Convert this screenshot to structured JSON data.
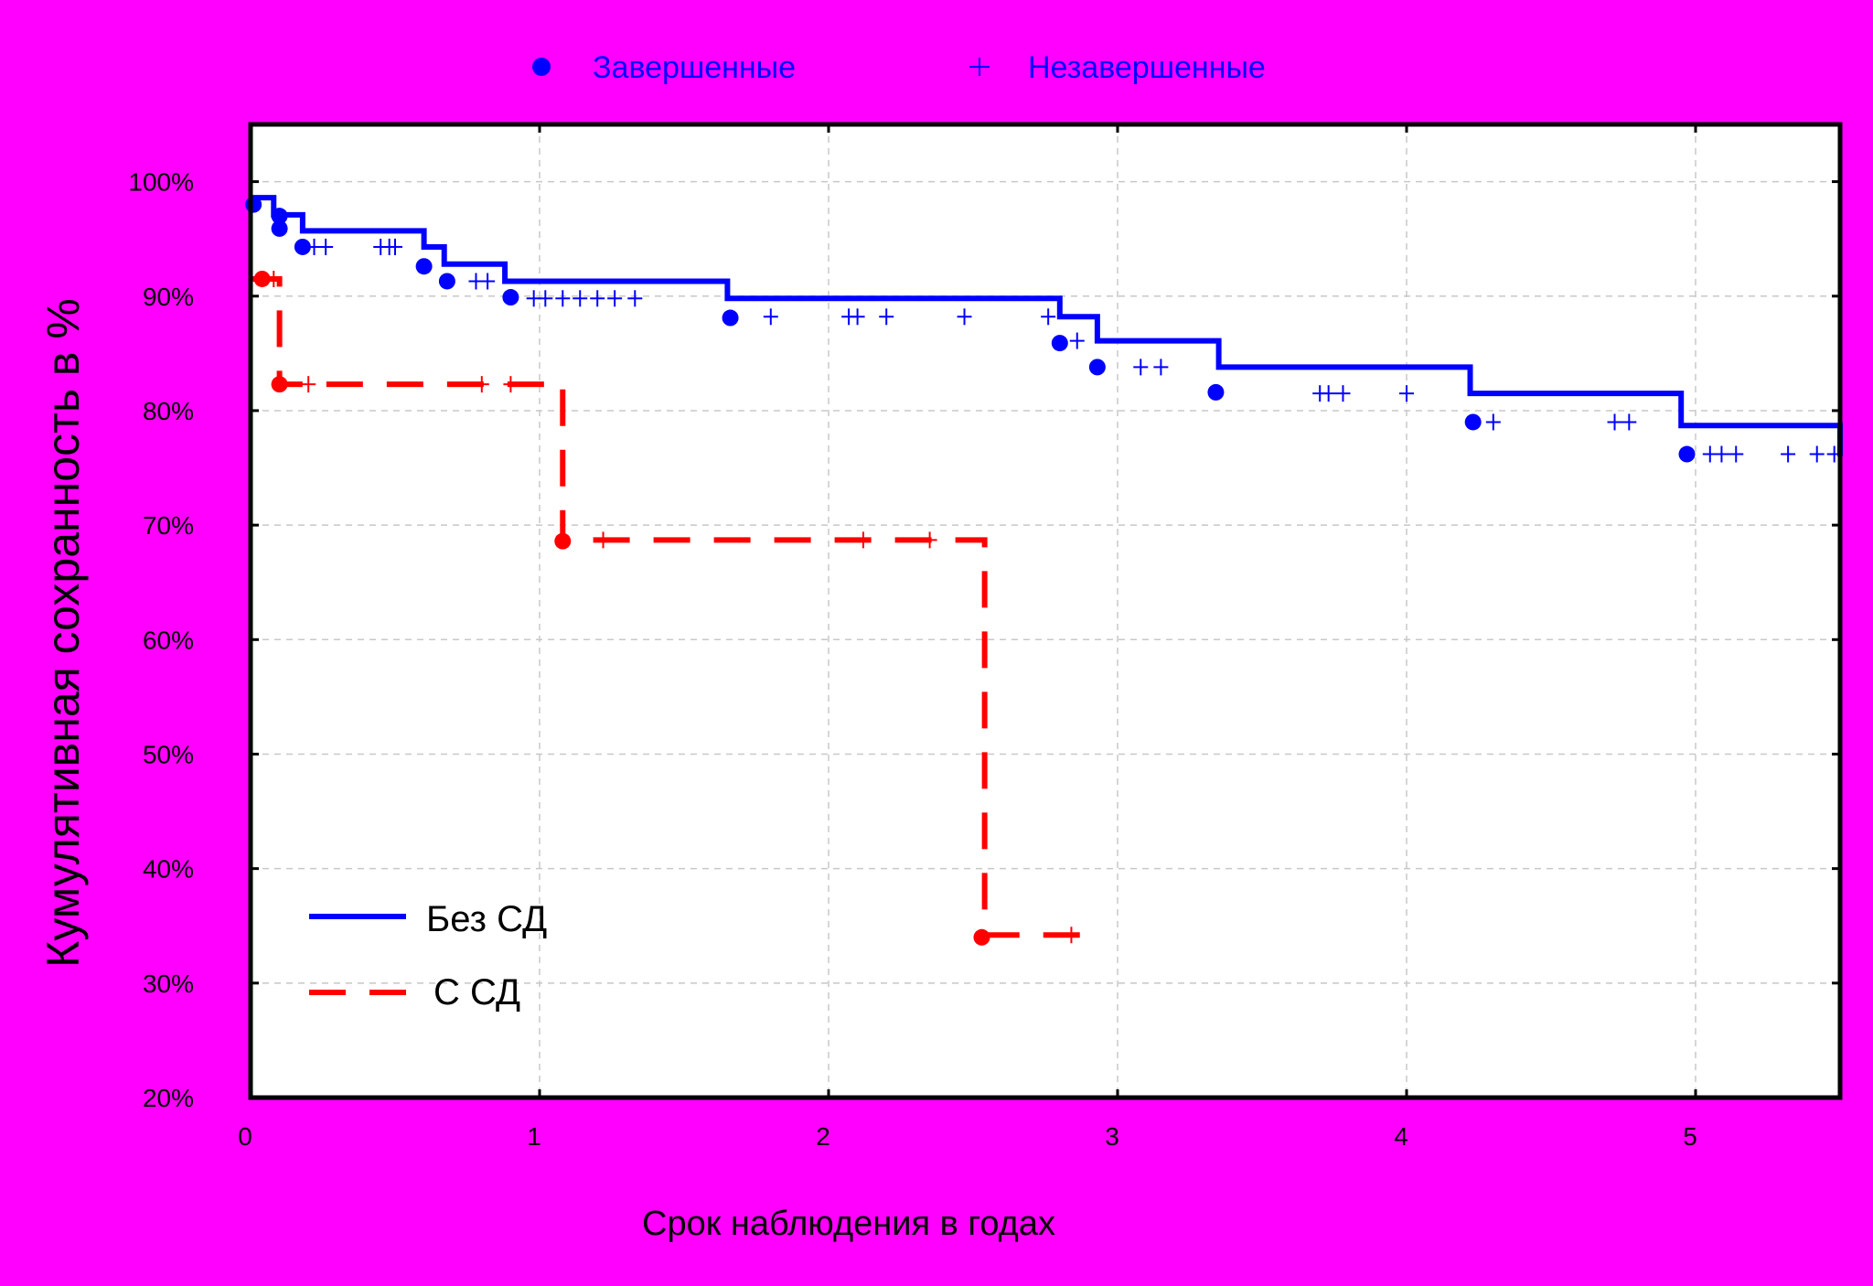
{
  "colors": {
    "background": "#FF00FF",
    "series_without_dm": "#0000FF",
    "series_with_dm": "#FF0000",
    "grid": "#C8C8C8",
    "axis": "#000000",
    "plot_bg": "#FFFFFF"
  },
  "chart_data": {
    "type": "line",
    "subtype": "kaplan-meier-step",
    "title": "",
    "xlabel": "Срок наблюдения в годах",
    "ylabel": "Кумулятивная сохранность в %",
    "xlim": [
      0,
      5.5
    ],
    "ylim": [
      20,
      105
    ],
    "grid": true,
    "x_ticks": [
      "0",
      "1",
      "2",
      "3",
      "4",
      "5"
    ],
    "y_ticks": [
      "20%",
      "30%",
      "40%",
      "50%",
      "60%",
      "70%",
      "80%",
      "90%",
      "100%"
    ],
    "marker_legend": {
      "placement": "top-center",
      "completed": "Завершенные",
      "censored": "Незавершенные"
    },
    "series_legend_placement": "bottom-left",
    "series": [
      {
        "name": "Без СД",
        "color": "#0000FF",
        "style": "solid",
        "steps": [
          [
            0,
            98.6
          ],
          [
            0.08,
            97.1
          ],
          [
            0.18,
            95.7
          ],
          [
            0.6,
            94.3
          ],
          [
            0.67,
            92.8
          ],
          [
            0.88,
            91.3
          ],
          [
            1.65,
            89.8
          ],
          [
            2.8,
            88.2
          ],
          [
            2.93,
            86.1
          ],
          [
            3.35,
            83.8
          ],
          [
            4.22,
            81.5
          ],
          [
            4.95,
            78.7
          ],
          [
            5.5,
            76.0
          ]
        ],
        "events": [
          [
            0.01,
            98.0
          ],
          [
            0.1,
            97.0
          ],
          [
            0.1,
            95.9
          ],
          [
            0.18,
            94.3
          ],
          [
            0.6,
            92.6
          ],
          [
            0.68,
            91.3
          ],
          [
            0.9,
            89.9
          ],
          [
            1.66,
            88.1
          ],
          [
            2.8,
            85.9
          ],
          [
            2.93,
            83.8
          ],
          [
            3.34,
            81.6
          ],
          [
            4.23,
            79.0
          ],
          [
            4.97,
            76.2
          ]
        ],
        "censored": [
          [
            0.22,
            94.3
          ],
          [
            0.26,
            94.3
          ],
          [
            0.45,
            94.3
          ],
          [
            0.48,
            94.3
          ],
          [
            0.5,
            94.3
          ],
          [
            0.78,
            91.3
          ],
          [
            0.82,
            91.3
          ],
          [
            0.98,
            89.8
          ],
          [
            1.02,
            89.8
          ],
          [
            1.08,
            89.8
          ],
          [
            1.14,
            89.8
          ],
          [
            1.2,
            89.8
          ],
          [
            1.26,
            89.8
          ],
          [
            1.33,
            89.8
          ],
          [
            1.8,
            88.2
          ],
          [
            2.07,
            88.2
          ],
          [
            2.1,
            88.2
          ],
          [
            2.2,
            88.2
          ],
          [
            2.47,
            88.2
          ],
          [
            2.76,
            88.2
          ],
          [
            2.86,
            86.1
          ],
          [
            3.08,
            83.8
          ],
          [
            3.15,
            83.8
          ],
          [
            3.7,
            81.5
          ],
          [
            3.73,
            81.5
          ],
          [
            3.78,
            81.5
          ],
          [
            4.0,
            81.5
          ],
          [
            4.3,
            79.0
          ],
          [
            4.72,
            79.0
          ],
          [
            4.77,
            79.0
          ],
          [
            5.05,
            76.2
          ],
          [
            5.09,
            76.2
          ],
          [
            5.14,
            76.2
          ],
          [
            5.32,
            76.2
          ],
          [
            5.42,
            76.2
          ],
          [
            5.48,
            76.2
          ]
        ]
      },
      {
        "name": "С СД",
        "color": "#FF0000",
        "style": "dashed",
        "steps": [
          [
            0,
            91.5
          ],
          [
            0.1,
            82.3
          ],
          [
            1.08,
            68.7
          ],
          [
            2.54,
            34.2
          ],
          [
            2.9,
            34.2
          ]
        ],
        "events": [
          [
            0.04,
            91.5
          ],
          [
            0.1,
            82.3
          ],
          [
            1.08,
            68.6
          ],
          [
            2.53,
            34.0
          ]
        ],
        "censored": [
          [
            0.08,
            91.5
          ],
          [
            0.2,
            82.3
          ],
          [
            0.8,
            82.3
          ],
          [
            0.9,
            82.3
          ],
          [
            1.22,
            68.7
          ],
          [
            2.12,
            68.7
          ],
          [
            2.35,
            68.7
          ],
          [
            2.84,
            34.2
          ]
        ]
      }
    ]
  }
}
